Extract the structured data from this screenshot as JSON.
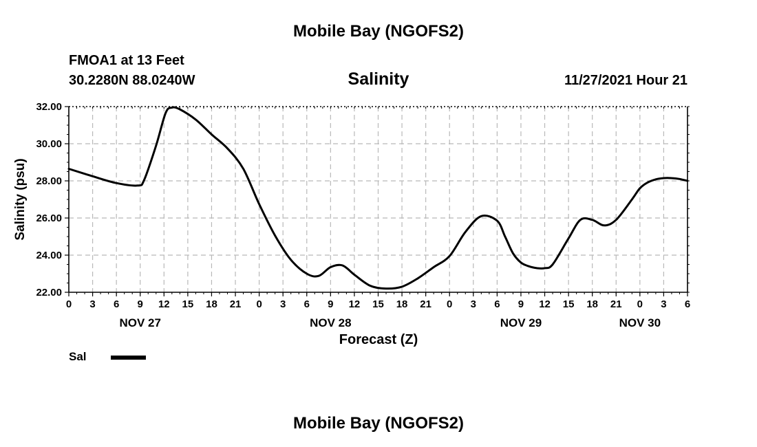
{
  "header": {
    "title": "Mobile Bay (NGOFS2)",
    "station": "FMOA1 at 13 Feet",
    "coords": "30.2280N  88.0240W",
    "variable": "Salinity",
    "timestamp": "11/27/2021 Hour 21"
  },
  "footer": {
    "title": "Mobile Bay (NGOFS2)"
  },
  "legend": {
    "label": "Sal",
    "color": "#000000"
  },
  "chart_data": {
    "type": "line",
    "title": "Salinity",
    "xlabel": "Forecast (Z)",
    "ylabel": "Salinity (psu)",
    "ylim": [
      22,
      32
    ],
    "xlim_hours": [
      0,
      78
    ],
    "yticks": [
      "22.00",
      "24.00",
      "26.00",
      "28.00",
      "30.00",
      "32.00"
    ],
    "xticks": [
      "0",
      "3",
      "6",
      "9",
      "12",
      "15",
      "18",
      "21",
      "0",
      "3",
      "6",
      "9",
      "12",
      "15",
      "18",
      "21",
      "0",
      "3",
      "6",
      "9",
      "12",
      "15",
      "18",
      "21",
      "0",
      "3",
      "6"
    ],
    "day_labels": [
      {
        "label": "NOV 27",
        "hour": 9
      },
      {
        "label": "NOV 28",
        "hour": 33
      },
      {
        "label": "NOV 29",
        "hour": 57
      },
      {
        "label": "NOV 30",
        "hour": 72
      }
    ],
    "grid": true,
    "series": [
      {
        "name": "Sal",
        "color": "#000000",
        "x": [
          0,
          3,
          6,
          8.7,
          9.5,
          11,
          12.2,
          13,
          14,
          16,
          18,
          20,
          22,
          24,
          26,
          28,
          30,
          31.5,
          33,
          34.5,
          36,
          38,
          40,
          42,
          44,
          46,
          48,
          50,
          52,
          54,
          55,
          56,
          57,
          58,
          59,
          60,
          61,
          63,
          64.5,
          66,
          67.5,
          69,
          71,
          72,
          73,
          74,
          75,
          76,
          77,
          78
        ],
        "values": [
          28.65,
          28.25,
          27.88,
          27.75,
          28.05,
          29.9,
          31.65,
          31.95,
          31.85,
          31.3,
          30.5,
          29.75,
          28.65,
          26.75,
          25.05,
          23.75,
          23.0,
          22.88,
          23.35,
          23.45,
          22.95,
          22.35,
          22.2,
          22.3,
          22.75,
          23.35,
          23.95,
          25.25,
          26.1,
          25.85,
          25.0,
          24.1,
          23.6,
          23.4,
          23.3,
          23.3,
          23.5,
          24.9,
          25.9,
          25.9,
          25.6,
          25.9,
          27.0,
          27.6,
          27.92,
          28.08,
          28.15,
          28.15,
          28.1,
          28.0
        ]
      }
    ]
  }
}
